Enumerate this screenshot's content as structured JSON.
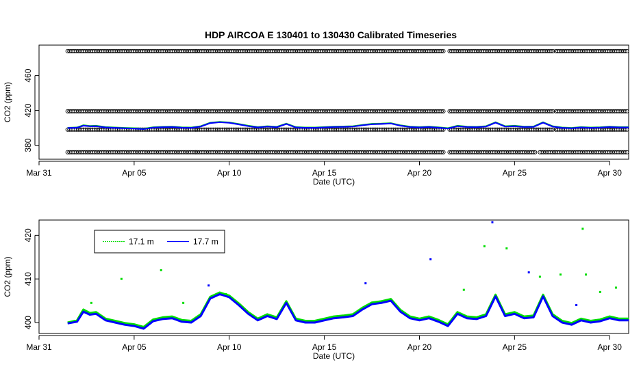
{
  "title": "HDP   AIRCOA  E   130401  to  130430   Calibrated Timeseries",
  "colors": {
    "series_17_1": "#00dd00",
    "series_17_7": "#0000ff",
    "standards": "#000000"
  },
  "chart_data": [
    {
      "type": "scatter",
      "xlabel": "Date (UTC)",
      "ylabel": "CO2 (ppm)",
      "x_ticks": [
        "Mar 31",
        "Apr 05",
        "Apr 10",
        "Apr 15",
        "Apr 20",
        "Apr 25",
        "Apr 30"
      ],
      "y_ticks": [
        380,
        420,
        460
      ],
      "xlim": [
        "2013-03-31",
        "2013-05-01"
      ],
      "ylim": [
        364,
        495
      ],
      "grid": false,
      "standards": [
        {
          "value": 372,
          "segments": [
            [
              "2013-04-01T12",
              "2013-04-08T06"
            ],
            [
              "2013-04-08T06",
              "2013-04-21T08"
            ],
            [
              "2013-04-21T14",
              "2013-04-26T04"
            ],
            [
              "2013-04-26T08",
              "2013-04-27T02"
            ],
            [
              "2013-04-27T04",
              "2013-05-01T00"
            ]
          ]
        },
        {
          "value": 398,
          "segments": [
            [
              "2013-04-01T12",
              "2013-04-08T06"
            ],
            [
              "2013-04-08T06",
              "2013-04-21T08"
            ],
            [
              "2013-04-21T14",
              "2013-04-27T02"
            ],
            [
              "2013-04-27T04",
              "2013-05-01T00"
            ]
          ]
        },
        {
          "value": 419,
          "segments": [
            [
              "2013-04-01T12",
              "2013-04-08T06"
            ],
            [
              "2013-04-08T06",
              "2013-04-21T08"
            ],
            [
              "2013-04-21T14",
              "2013-04-27T02"
            ],
            [
              "2013-04-27T04",
              "2013-05-01T00"
            ]
          ]
        },
        {
          "value": 488,
          "segments": [
            [
              "2013-04-01T12",
              "2013-04-08T06"
            ],
            [
              "2013-04-08T06",
              "2013-04-21T08"
            ],
            [
              "2013-04-21T14",
              "2013-04-27T02"
            ],
            [
              "2013-04-27T04",
              "2013-05-01T00"
            ]
          ]
        }
      ]
    },
    {
      "type": "line",
      "xlabel": "Date (UTC)",
      "ylabel": "CO2 (ppm)",
      "x_ticks": [
        "Mar 31",
        "Apr 05",
        "Apr 10",
        "Apr 15",
        "Apr 20",
        "Apr 25",
        "Apr 30"
      ],
      "y_ticks": [
        400,
        410,
        420
      ],
      "xlim": [
        "2013-03-31",
        "2013-05-01"
      ],
      "ylim": [
        397.5,
        423.5
      ],
      "grid": false,
      "legend": {
        "position": "top-left",
        "entries": [
          "17.1 m",
          "17.7 m"
        ]
      },
      "series": [
        {
          "name": "17.7 m",
          "x": [
            "2013-04-01T12",
            "2013-04-02T00",
            "2013-04-02T08",
            "2013-04-02T16",
            "2013-04-03T00",
            "2013-04-03T12",
            "2013-04-04T00",
            "2013-04-04T12",
            "2013-04-05T00",
            "2013-04-05T12",
            "2013-04-06T00",
            "2013-04-06T12",
            "2013-04-07T00",
            "2013-04-07T12",
            "2013-04-08T00",
            "2013-04-08T12",
            "2013-04-09T00",
            "2013-04-09T12",
            "2013-04-10T00",
            "2013-04-10T12",
            "2013-04-11T00",
            "2013-04-11T12",
            "2013-04-12T00",
            "2013-04-12T12",
            "2013-04-13T00",
            "2013-04-13T12",
            "2013-04-14T00",
            "2013-04-14T12",
            "2013-04-15T00",
            "2013-04-15T12",
            "2013-04-16T00",
            "2013-04-16T12",
            "2013-04-17T00",
            "2013-04-17T12",
            "2013-04-18T00",
            "2013-04-18T12",
            "2013-04-19T00",
            "2013-04-19T12",
            "2013-04-20T00",
            "2013-04-20T12",
            "2013-04-21T00",
            "2013-04-21T12",
            "2013-04-22T00",
            "2013-04-22T12",
            "2013-04-23T00",
            "2013-04-23T12",
            "2013-04-24T00",
            "2013-04-24T12",
            "2013-04-25T00",
            "2013-04-25T12",
            "2013-04-26T00",
            "2013-04-26T12",
            "2013-04-27T00",
            "2013-04-27T12",
            "2013-04-28T00",
            "2013-04-28T12",
            "2013-04-29T00",
            "2013-04-29T12",
            "2013-04-30T00",
            "2013-04-30T12",
            "2013-05-01T00"
          ],
          "y": [
            399.8,
            400.2,
            402.5,
            401.8,
            402.0,
            400.5,
            400.0,
            399.5,
            399.2,
            398.6,
            400.3,
            400.8,
            401.0,
            400.2,
            400.0,
            401.5,
            405.5,
            406.5,
            405.8,
            404.0,
            402.0,
            400.5,
            401.5,
            400.8,
            404.5,
            400.5,
            400.0,
            400.0,
            400.5,
            401.0,
            401.2,
            401.5,
            403.0,
            404.2,
            404.5,
            405.0,
            402.5,
            401.0,
            400.5,
            401.0,
            400.2,
            399.2,
            402.0,
            401.0,
            400.8,
            401.5,
            406.0,
            401.5,
            402.0,
            401.0,
            401.2,
            406.0,
            401.5,
            400.0,
            399.5,
            400.5,
            400.0,
            400.3,
            401.0,
            400.5,
            400.5
          ]
        },
        {
          "name": "17.1 m",
          "x": [
            "2013-04-01T12",
            "2013-04-02T00",
            "2013-04-02T08",
            "2013-04-02T16",
            "2013-04-03T00",
            "2013-04-03T12",
            "2013-04-04T00",
            "2013-04-04T12",
            "2013-04-05T00",
            "2013-04-05T12",
            "2013-04-06T00",
            "2013-04-06T12",
            "2013-04-07T00",
            "2013-04-07T12",
            "2013-04-08T00",
            "2013-04-08T12",
            "2013-04-09T00",
            "2013-04-09T12",
            "2013-04-10T00",
            "2013-04-10T12",
            "2013-04-11T00",
            "2013-04-11T12",
            "2013-04-12T00",
            "2013-04-12T12",
            "2013-04-13T00",
            "2013-04-13T12",
            "2013-04-14T00",
            "2013-04-14T12",
            "2013-04-15T00",
            "2013-04-15T12",
            "2013-04-16T00",
            "2013-04-16T12",
            "2013-04-17T00",
            "2013-04-17T12",
            "2013-04-18T00",
            "2013-04-18T12",
            "2013-04-19T00",
            "2013-04-19T12",
            "2013-04-20T00",
            "2013-04-20T12",
            "2013-04-21T00",
            "2013-04-21T12",
            "2013-04-22T00",
            "2013-04-22T12",
            "2013-04-23T00",
            "2013-04-23T12",
            "2013-04-24T00",
            "2013-04-24T12",
            "2013-04-25T00",
            "2013-04-25T12",
            "2013-04-26T00",
            "2013-04-26T12",
            "2013-04-27T00",
            "2013-04-27T12",
            "2013-04-28T00",
            "2013-04-28T12",
            "2013-04-29T00",
            "2013-04-29T12",
            "2013-04-30T00",
            "2013-04-30T12",
            "2013-05-01T00"
          ],
          "y": [
            400.0,
            400.5,
            403.0,
            402.2,
            402.4,
            400.9,
            400.4,
            399.9,
            399.6,
            399.0,
            400.7,
            401.2,
            401.4,
            400.6,
            400.4,
            401.9,
            405.9,
            406.9,
            406.2,
            404.4,
            402.4,
            400.9,
            401.9,
            401.2,
            404.9,
            400.9,
            400.4,
            400.4,
            400.9,
            401.4,
            401.6,
            401.9,
            403.4,
            404.6,
            404.9,
            405.4,
            402.9,
            401.4,
            400.9,
            401.4,
            400.6,
            399.6,
            402.4,
            401.4,
            401.2,
            401.9,
            406.4,
            401.9,
            402.4,
            401.4,
            401.6,
            406.4,
            401.9,
            400.4,
            399.9,
            400.9,
            400.4,
            400.7,
            401.4,
            400.9,
            400.9
          ]
        }
      ],
      "outliers": [
        {
          "series": "17.7 m",
          "x": "2013-04-20T14",
          "y": 414.5
        },
        {
          "series": "17.7 m",
          "x": "2013-04-23T20",
          "y": 423.0
        },
        {
          "series": "17.7 m",
          "x": "2013-04-25T18",
          "y": 411.5
        },
        {
          "series": "17.7 m",
          "x": "2013-04-28T06",
          "y": 404.0
        },
        {
          "series": "17.7 m",
          "x": "2013-04-08T22",
          "y": 408.5
        },
        {
          "series": "17.7 m",
          "x": "2013-04-17T04",
          "y": 409.0
        },
        {
          "series": "17.1 m",
          "x": "2013-04-04T08",
          "y": 410.0
        },
        {
          "series": "17.1 m",
          "x": "2013-04-06T10",
          "y": 412.0
        },
        {
          "series": "17.1 m",
          "x": "2013-04-23T10",
          "y": 417.5
        },
        {
          "series": "17.1 m",
          "x": "2013-04-24T14",
          "y": 417.0
        },
        {
          "series": "17.1 m",
          "x": "2013-04-28T14",
          "y": 421.5
        },
        {
          "series": "17.1 m",
          "x": "2013-04-28T18",
          "y": 411.0
        },
        {
          "series": "17.1 m",
          "x": "2013-04-27T10",
          "y": 411.0
        },
        {
          "series": "17.1 m",
          "x": "2013-04-29T12",
          "y": 407.0
        },
        {
          "series": "17.1 m",
          "x": "2013-04-30T08",
          "y": 408.0
        },
        {
          "series": "17.1 m",
          "x": "2013-04-22T08",
          "y": 407.5
        },
        {
          "series": "17.1 m",
          "x": "2013-04-26T08",
          "y": 410.5
        },
        {
          "series": "17.1 m",
          "x": "2013-04-02T18",
          "y": 404.5
        },
        {
          "series": "17.1 m",
          "x": "2013-04-07T14",
          "y": 404.5
        },
        {
          "series": "17.1 m",
          "x": "2013-04-09T20",
          "y": 406.5
        }
      ]
    }
  ]
}
